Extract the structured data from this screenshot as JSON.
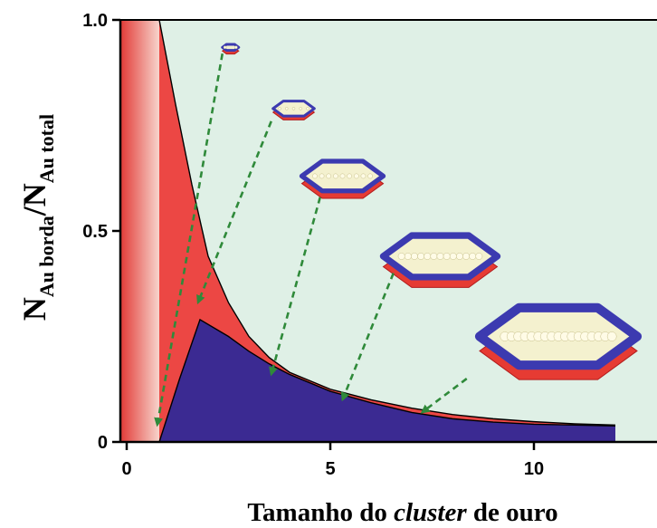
{
  "chart_data": {
    "type": "area",
    "xlabel_parts": {
      "pre": "Tamanho do ",
      "italic": "cluster",
      "post": " de ouro"
    },
    "ylabel_parts": {
      "n1": "N",
      "sub1": "Au borda",
      "slash": "/",
      "n2": "N",
      "sub2": "Au total"
    },
    "xlim": [
      -0.3,
      13
    ],
    "ylim": [
      0,
      1.0
    ],
    "x_ticks": [
      0,
      5,
      10
    ],
    "x_tick_labels": [
      "0",
      "5",
      "10"
    ],
    "y_ticks": [
      0,
      0.5,
      1.0
    ],
    "y_tick_labels": [
      "0",
      "0.5",
      "1.0"
    ],
    "grid": false,
    "colors": {
      "background": "#dff0e6",
      "edge_fraction": "#ec4744",
      "corner_fraction": "#3b2a92",
      "gradient_start": "#e23a36",
      "gradient_end": "#f7d4cc",
      "arrows": "#2f8a3a"
    },
    "series": [
      {
        "role": "upper-boundary",
        "x": [
          0.8,
          1.2,
          1.6,
          2.0,
          2.5,
          3.0,
          3.5,
          4.0,
          5.0,
          6.0,
          7.0,
          8.0,
          9.0,
          10.0,
          11.0,
          12.0
        ],
        "y": [
          1.0,
          0.8,
          0.61,
          0.44,
          0.33,
          0.25,
          0.2,
          0.165,
          0.125,
          0.1,
          0.08,
          0.065,
          0.055,
          0.048,
          0.043,
          0.04
        ]
      },
      {
        "role": "corner-boundary",
        "x": [
          0.8,
          1.3,
          1.8,
          2.5,
          3.0,
          3.5,
          4.0,
          5.0,
          6.0,
          7.0,
          8.0,
          9.0,
          10.0,
          11.0,
          12.0
        ],
        "y": [
          0.0,
          0.15,
          0.29,
          0.25,
          0.215,
          0.185,
          0.16,
          0.12,
          0.093,
          0.07,
          0.055,
          0.047,
          0.042,
          0.04,
          0.038
        ]
      }
    ],
    "clusters": [
      {
        "name": "cluster-1",
        "size": 1.5,
        "cx": 2.55,
        "cy": 0.935
      },
      {
        "name": "cluster-2",
        "size": 3.8,
        "cx": 4.1,
        "cy": 0.79
      },
      {
        "name": "cluster-3",
        "size": 7.5,
        "cx": 5.3,
        "cy": 0.63
      },
      {
        "name": "cluster-4",
        "size": 10.5,
        "cx": 7.7,
        "cy": 0.44
      },
      {
        "name": "cluster-5",
        "size": 14.5,
        "cx": 10.6,
        "cy": 0.25
      }
    ],
    "arrows": [
      {
        "from": [
          2.35,
          0.92
        ],
        "to": [
          0.75,
          0.04
        ]
      },
      {
        "from": [
          3.55,
          0.76
        ],
        "to": [
          1.75,
          0.33
        ]
      },
      {
        "from": [
          4.75,
          0.58
        ],
        "to": [
          3.55,
          0.16
        ]
      },
      {
        "from": [
          6.55,
          0.4
        ],
        "to": [
          5.3,
          0.1
        ]
      },
      {
        "from": [
          8.35,
          0.15
        ],
        "to": [
          7.25,
          0.07
        ]
      }
    ]
  }
}
